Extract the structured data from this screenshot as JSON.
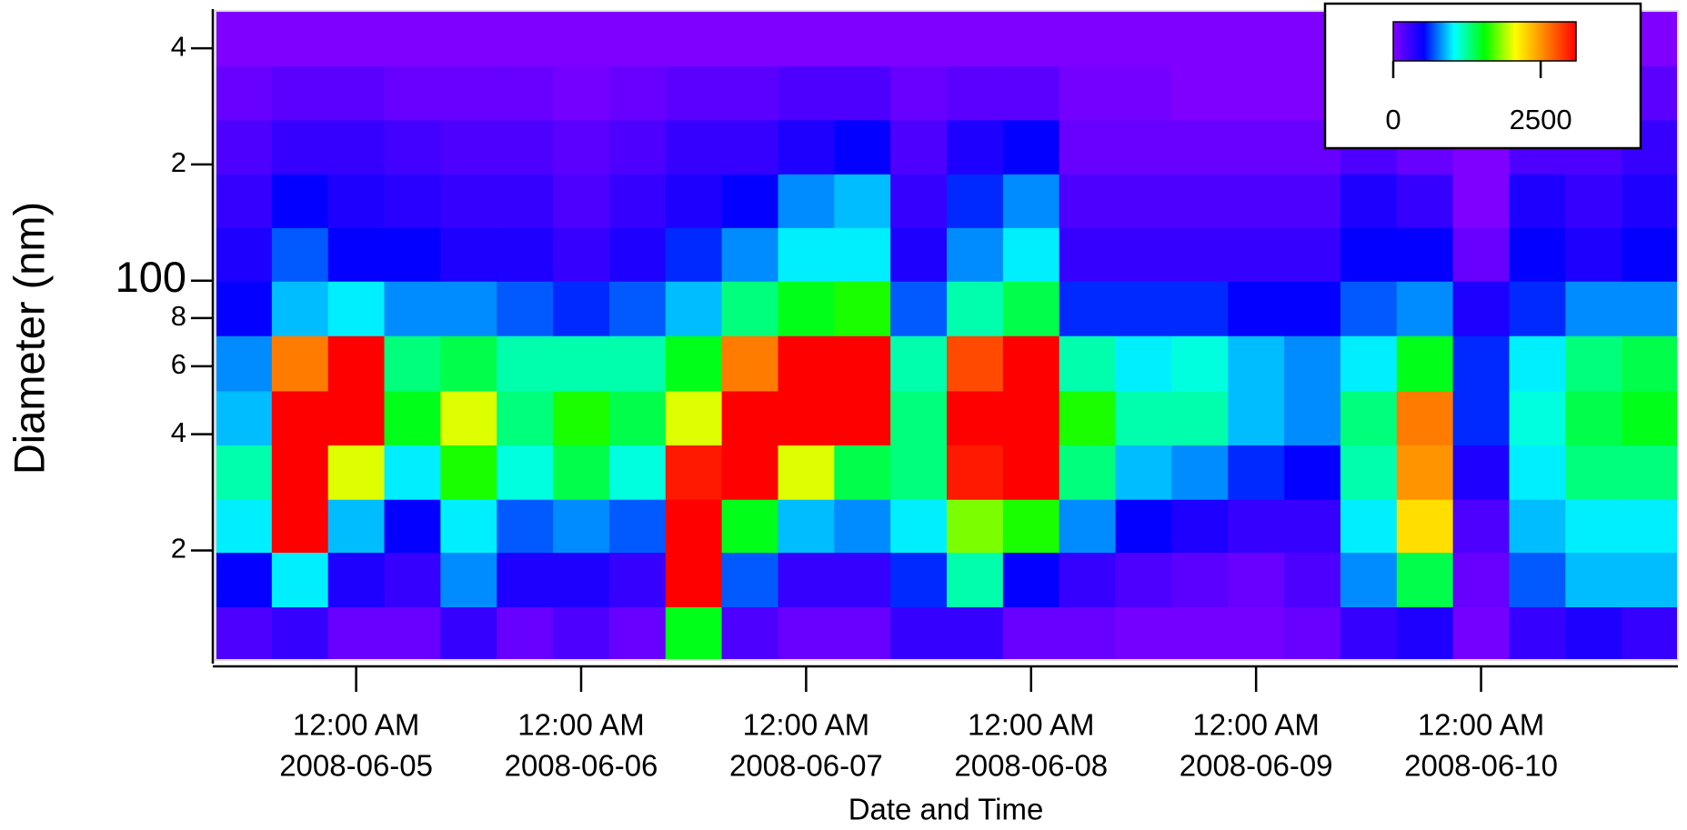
{
  "chart_data": {
    "type": "heatmap",
    "x_label": "Date and Time",
    "y_label": "Diameter (nm)",
    "x": [
      "2008-06-04 12:00",
      "2008-06-04 18:00",
      "2008-06-05 00:00",
      "2008-06-05 06:00",
      "2008-06-05 12:00",
      "2008-06-05 18:00",
      "2008-06-06 00:00",
      "2008-06-06 06:00",
      "2008-06-06 12:00",
      "2008-06-06 18:00",
      "2008-06-07 00:00",
      "2008-06-07 06:00",
      "2008-06-07 12:00",
      "2008-06-07 18:00",
      "2008-06-08 00:00",
      "2008-06-08 06:00",
      "2008-06-08 12:00",
      "2008-06-08 18:00",
      "2008-06-09 00:00",
      "2008-06-09 06:00",
      "2008-06-09 12:00",
      "2008-06-09 18:00",
      "2008-06-10 00:00",
      "2008-06-10 06:00",
      "2008-06-10 12:00",
      "2008-06-10 18:00"
    ],
    "y": [
      12,
      17,
      23,
      32,
      44,
      61,
      85,
      117,
      161,
      222,
      307,
      423
    ],
    "z": [
      [
        200,
        300,
        100,
        100,
        300,
        100,
        200,
        100,
        1500,
        200,
        100,
        100,
        300,
        300,
        100,
        100,
        50,
        50,
        50,
        100,
        300,
        400,
        50,
        300,
        400,
        300
      ],
      [
        500,
        1000,
        400,
        300,
        800,
        400,
        400,
        300,
        3200,
        700,
        300,
        300,
        600,
        1200,
        500,
        300,
        200,
        150,
        100,
        200,
        800,
        1400,
        100,
        700,
        900,
        900
      ],
      [
        1000,
        3200,
        900,
        500,
        1000,
        700,
        800,
        700,
        3200,
        1500,
        900,
        800,
        1000,
        1800,
        1600,
        800,
        500,
        400,
        300,
        300,
        1000,
        2200,
        200,
        900,
        1000,
        1000
      ],
      [
        1200,
        3200,
        2000,
        1000,
        1600,
        1100,
        1400,
        1100,
        3000,
        3100,
        2000,
        1400,
        1300,
        3000,
        3200,
        1300,
        900,
        800,
        600,
        500,
        1200,
        2500,
        400,
        1000,
        1300,
        1300
      ],
      [
        900,
        3200,
        3200,
        1500,
        2000,
        1300,
        1600,
        1400,
        2000,
        3200,
        3200,
        3200,
        1300,
        3200,
        3200,
        1600,
        1200,
        1200,
        900,
        800,
        1300,
        2600,
        600,
        1100,
        1400,
        1500
      ],
      [
        800,
        2600,
        3200,
        1300,
        1400,
        1200,
        1200,
        1200,
        1500,
        2600,
        3200,
        3200,
        1200,
        2800,
        3200,
        1200,
        1000,
        1100,
        900,
        800,
        1000,
        1500,
        600,
        1000,
        1300,
        1400
      ],
      [
        500,
        900,
        1000,
        800,
        800,
        700,
        600,
        700,
        900,
        1300,
        1500,
        1600,
        700,
        1200,
        1400,
        600,
        600,
        600,
        500,
        500,
        700,
        800,
        400,
        600,
        800,
        800
      ],
      [
        400,
        700,
        500,
        500,
        400,
        400,
        300,
        400,
        600,
        800,
        1000,
        1000,
        400,
        800,
        1000,
        300,
        300,
        300,
        300,
        300,
        500,
        500,
        100,
        500,
        400,
        500
      ],
      [
        300,
        500,
        400,
        350,
        300,
        300,
        200,
        300,
        400,
        500,
        800,
        900,
        300,
        600,
        800,
        200,
        200,
        200,
        200,
        200,
        400,
        300,
        0,
        400,
        300,
        400
      ],
      [
        200,
        300,
        300,
        250,
        200,
        200,
        150,
        200,
        300,
        300,
        400,
        500,
        200,
        400,
        500,
        100,
        100,
        100,
        100,
        100,
        200,
        100,
        0,
        200,
        200,
        300
      ],
      [
        100,
        150,
        150,
        100,
        100,
        100,
        50,
        100,
        150,
        150,
        200,
        200,
        100,
        150,
        150,
        50,
        50,
        0,
        0,
        0,
        50,
        0,
        0,
        50,
        100,
        150
      ],
      [
        0,
        0,
        0,
        0,
        0,
        0,
        0,
        0,
        0,
        0,
        0,
        0,
        0,
        0,
        0,
        0,
        0,
        0,
        0,
        0,
        0,
        0,
        0,
        0,
        0,
        0
      ]
    ],
    "xlim": [
      "2008-06-04 09:00",
      "2008-06-10 21:00"
    ],
    "xticks": [
      {
        "value": "2008-06-05 00:00",
        "label": [
          "12:00 AM",
          "2008-06-05"
        ]
      },
      {
        "value": "2008-06-06 00:00",
        "label": [
          "12:00 AM",
          "2008-06-06"
        ]
      },
      {
        "value": "2008-06-07 00:00",
        "label": [
          "12:00 AM",
          "2008-06-07"
        ]
      },
      {
        "value": "2008-06-08 00:00",
        "label": [
          "12:00 AM",
          "2008-06-08"
        ]
      },
      {
        "value": "2008-06-09 00:00",
        "label": [
          "12:00 AM",
          "2008-06-09"
        ]
      },
      {
        "value": "2008-06-10 00:00",
        "label": [
          "12:00 AM",
          "2008-06-10"
        ]
      }
    ],
    "ylim": [
      10.4,
      500
    ],
    "y_log": true,
    "yticks": [
      {
        "value": 20,
        "label": "2"
      },
      {
        "value": 40,
        "label": "4"
      },
      {
        "value": 60,
        "label": "6"
      },
      {
        "value": 80,
        "label": "8"
      },
      100,
      {
        "value": 200,
        "label": "2"
      },
      {
        "value": 400,
        "label": "4"
      }
    ],
    "zlim": [
      0,
      3100
    ],
    "zticks": [
      0,
      2500
    ],
    "colormap": [
      "#8000ff",
      "#0000ff",
      "#00ffff",
      "#00ff00",
      "#ffff00",
      "#ff8000",
      "#ff0000"
    ],
    "colorbar_position": "upper right"
  }
}
